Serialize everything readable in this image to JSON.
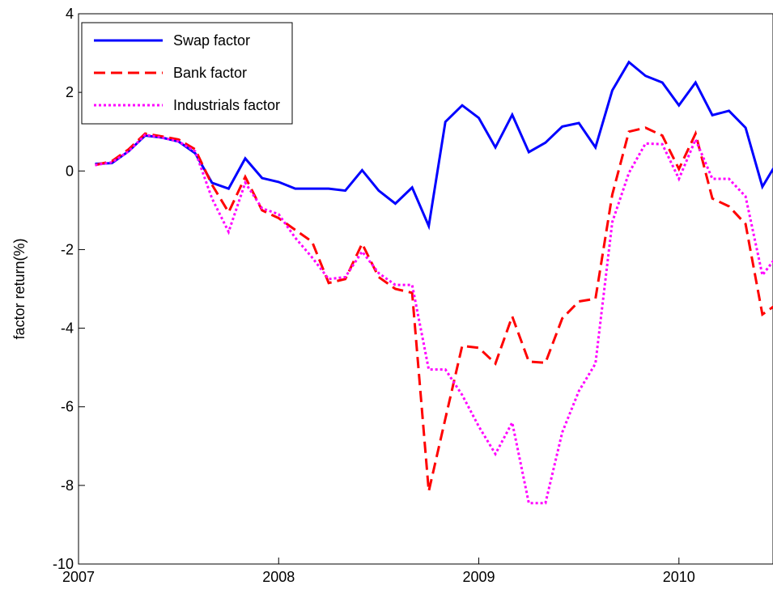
{
  "chart_data": {
    "type": "line",
    "ylabel": "factor return(%)",
    "x": [
      2007.083,
      2007.167,
      2007.25,
      2007.333,
      2007.417,
      2007.5,
      2007.583,
      2007.667,
      2007.75,
      2007.833,
      2007.917,
      2008.0,
      2008.083,
      2008.167,
      2008.25,
      2008.333,
      2008.417,
      2008.5,
      2008.583,
      2008.667,
      2008.75,
      2008.833,
      2008.917,
      2009.0,
      2009.083,
      2009.167,
      2009.25,
      2009.333,
      2009.417,
      2009.5,
      2009.583,
      2009.667,
      2009.75,
      2009.833,
      2009.917,
      2010.0,
      2010.083,
      2010.167,
      2010.25,
      2010.333,
      2010.417,
      2010.5
    ],
    "series": [
      {
        "name": "Swap factor",
        "color": "#0000ff",
        "dash": "solid",
        "values": [
          0.18,
          0.2,
          0.5,
          0.9,
          0.85,
          0.75,
          0.45,
          -0.3,
          -0.45,
          0.32,
          -0.18,
          -0.28,
          -0.45,
          -0.45,
          -0.45,
          -0.5,
          0.02,
          -0.5,
          -0.83,
          -0.42,
          -1.4,
          1.25,
          1.67,
          1.35,
          0.6,
          1.43,
          0.48,
          0.72,
          1.13,
          1.22,
          0.6,
          2.05,
          2.77,
          2.42,
          2.25,
          1.67,
          2.25,
          1.42,
          1.53,
          1.1,
          -0.4,
          0.3
        ]
      },
      {
        "name": "Bank factor",
        "color": "#ff0000",
        "dash": "dashed",
        "values": [
          0.15,
          0.25,
          0.55,
          0.95,
          0.88,
          0.8,
          0.55,
          -0.35,
          -1.05,
          -0.15,
          -1.0,
          -1.2,
          -1.5,
          -1.8,
          -2.85,
          -2.75,
          -1.85,
          -2.7,
          -3.0,
          -3.1,
          -8.15,
          -6.3,
          -4.45,
          -4.5,
          -4.9,
          -3.7,
          -4.85,
          -4.88,
          -3.75,
          -3.32,
          -3.25,
          -0.6,
          1.0,
          1.1,
          0.9,
          0.05,
          0.95,
          -0.7,
          -0.9,
          -1.35,
          -3.65,
          -3.35
        ]
      },
      {
        "name": "Industrials factor",
        "color": "#ff00ff",
        "dash": "dotted",
        "values": [
          0.15,
          0.22,
          0.5,
          0.92,
          0.85,
          0.75,
          0.5,
          -0.7,
          -1.55,
          -0.3,
          -0.95,
          -1.1,
          -1.7,
          -2.2,
          -2.75,
          -2.7,
          -2.05,
          -2.6,
          -2.9,
          -2.9,
          -5.05,
          -5.05,
          -5.7,
          -6.5,
          -7.2,
          -6.4,
          -8.45,
          -8.45,
          -6.65,
          -5.6,
          -4.9,
          -1.3,
          -0.05,
          0.7,
          0.68,
          -0.2,
          0.8,
          -0.2,
          -0.2,
          -0.65,
          -2.65,
          -2.1
        ]
      }
    ],
    "xlim": [
      2007,
      2010.47
    ],
    "xticks": [
      2007,
      2008,
      2009,
      2010
    ],
    "ylim": [
      -10,
      4
    ],
    "yticks": [
      -10,
      -8,
      -6,
      -4,
      -2,
      0,
      2,
      4
    ],
    "legend": "upper left"
  }
}
